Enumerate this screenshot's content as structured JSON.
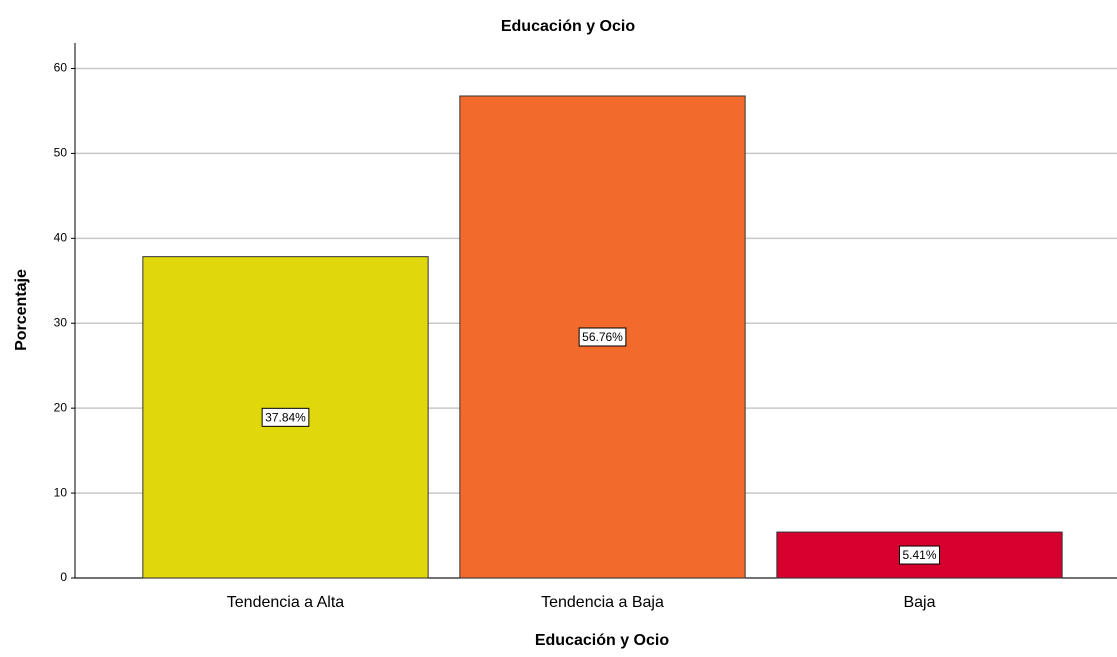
{
  "chart_data": {
    "type": "bar",
    "title": "Educación y Ocio",
    "x_label": "Educación y Ocio",
    "y_label": "Porcentaje",
    "categories": [
      "Tendencia a Alta",
      "Tendencia a Baja",
      "Baja"
    ],
    "values": [
      37.84,
      56.76,
      5.41
    ],
    "value_labels": [
      "37.84%",
      "56.76%",
      "5.41%"
    ],
    "colors": [
      "#e1d80b",
      "#f26a2c",
      "#d6002f"
    ],
    "ylim": [
      0,
      63
    ],
    "yticks": [
      0,
      10,
      20,
      30,
      40,
      50,
      60
    ],
    "grid": true
  }
}
